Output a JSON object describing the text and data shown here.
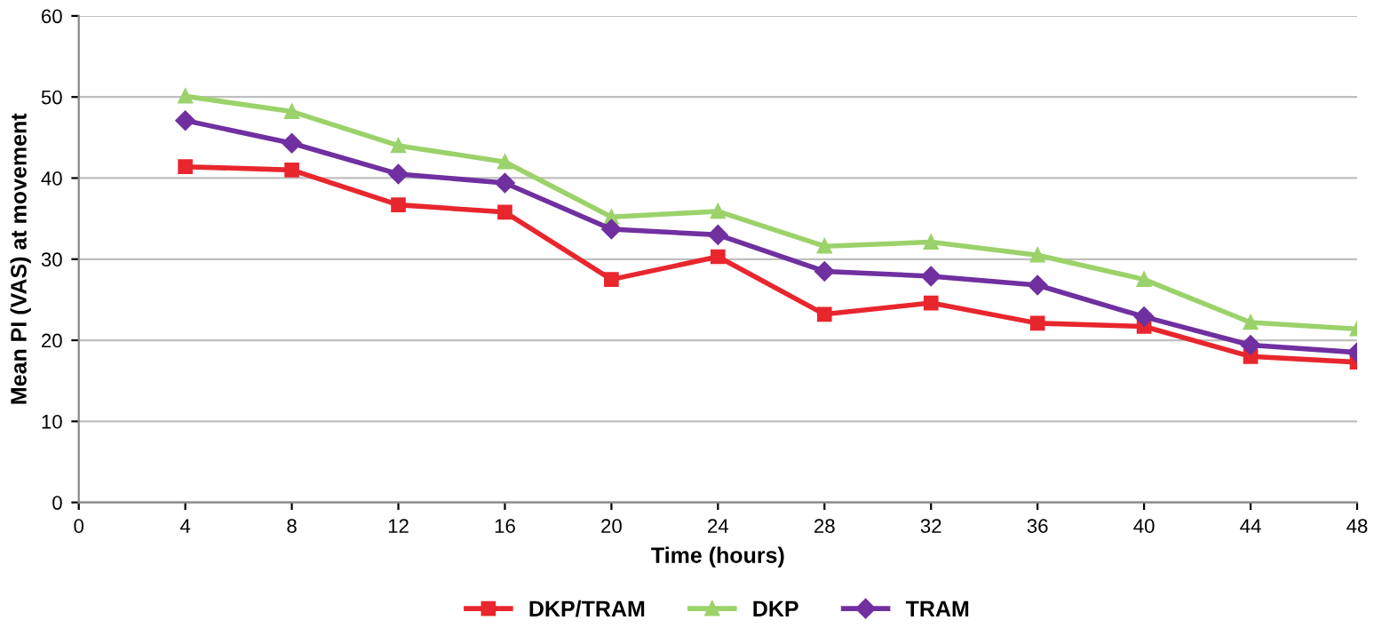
{
  "chart_data": {
    "type": "line",
    "xlabel": "Time (hours)",
    "ylabel": "Mean PI (VAS) at movement",
    "x": [
      4,
      8,
      12,
      16,
      20,
      24,
      28,
      32,
      36,
      40,
      44,
      48
    ],
    "series": [
      {
        "name": "DKP/TRAM",
        "color": "#e8262d",
        "marker": "square",
        "values": [
          41.4,
          41,
          36.7,
          35.8,
          27.5,
          30.3,
          23.2,
          24.6,
          22.1,
          21.7,
          18,
          17.3
        ]
      },
      {
        "name": "DKP",
        "color": "#9bd26a",
        "marker": "triangle",
        "values": [
          50.1,
          48.2,
          44,
          42,
          35.2,
          35.9,
          31.6,
          32.1,
          30.5,
          27.5,
          22.2,
          21.4
        ]
      },
      {
        "name": "TRAM",
        "color": "#7030a0",
        "marker": "diamond",
        "values": [
          47.1,
          44.3,
          40.5,
          39.4,
          33.7,
          33,
          28.5,
          27.9,
          26.8,
          22.9,
          19.4,
          18.5
        ]
      }
    ],
    "xlim": [
      0,
      48
    ],
    "xticks": [
      0,
      4,
      8,
      12,
      16,
      20,
      24,
      28,
      32,
      36,
      40,
      44,
      48
    ],
    "ylim": [
      0,
      60
    ],
    "yticks": [
      0,
      10,
      20,
      30,
      40,
      50,
      60
    ],
    "grid": "y",
    "legend": "bottom",
    "line_style": "solid"
  }
}
